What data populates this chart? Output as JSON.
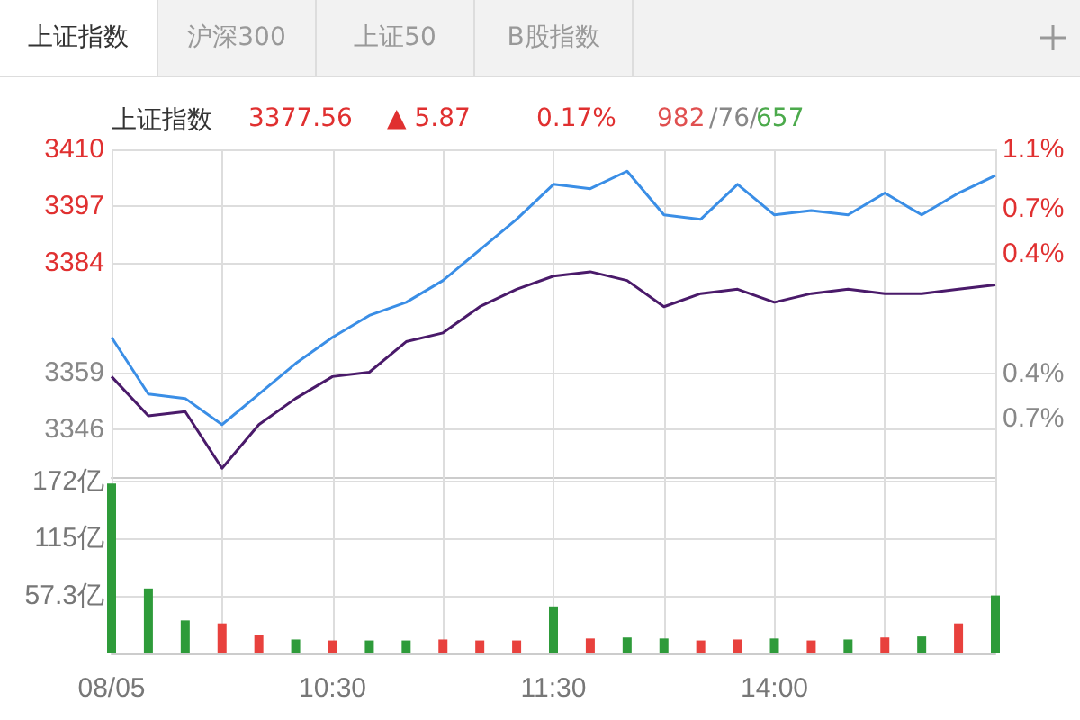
{
  "chart_data": [
    {
      "type": "other",
      "annotations": [
        "上证指数",
        "沪深300",
        "上证50",
        "B股指数"
      ]
    },
    {
      "type": "line",
      "title": "上证指数",
      "annotations": [
        "3377.56",
        "▲ 5.87",
        "0.17%",
        "982",
        "/76/",
        "657"
      ],
      "categories": [
        null,
        null,
        null,
        null,
        null,
        null,
        null,
        null,
        null,
        null,
        null,
        null,
        null,
        null,
        null,
        null,
        null,
        null,
        null,
        null,
        null,
        null,
        null,
        null,
        null
      ],
      "ylim": [
        3335,
        3410
      ],
      "yticks": [
        3410,
        3397,
        3384,
        3359,
        3346
      ],
      "y2lim": [
        -1.09,
        1.1
      ],
      "y2ticks": [
        {
          "value": 1.1,
          "label": "1.1%"
        },
        {
          "value": 0.7,
          "label": "0.7%"
        },
        {
          "value": 0.4,
          "label": "0.4%"
        },
        {
          "value": -0.4,
          "label": "0.4%"
        },
        {
          "value": -0.7,
          "label": "0.7%"
        }
      ],
      "tick_labels": "y",
      "grid": true,
      "marker": "none",
      "line_style": "solid",
      "series": [
        {
          "color": "#3a8ee6",
          "values": [
            3367,
            3354,
            3353,
            3347,
            3354,
            3361,
            3367,
            3372,
            3375,
            3380,
            3387,
            3394,
            3402,
            3401,
            3405,
            3395,
            3394,
            3402,
            3395,
            3396,
            3395,
            3400,
            3395,
            3400,
            3404
          ]
        },
        {
          "color": "#4a1a6a",
          "values": [
            3358,
            3349,
            3350,
            3337,
            3347,
            3353,
            3358,
            3359,
            3366,
            3368,
            3374,
            3378,
            3381,
            3382,
            3380,
            3374,
            3377,
            3378,
            3375,
            3377,
            3378,
            3377,
            3377,
            3378,
            3379
          ]
        }
      ]
    },
    {
      "type": "bar",
      "categories": [
        "08/05",
        null,
        null,
        null,
        null,
        null,
        "10:30",
        null,
        null,
        null,
        null,
        null,
        "11:30",
        null,
        null,
        null,
        null,
        null,
        "14:00",
        null,
        null,
        null,
        null,
        null,
        null
      ],
      "ylim": [
        0,
        180
      ],
      "yticks": [
        {
          "value": 172,
          "label": "172亿"
        },
        {
          "value": 115,
          "label": "115亿"
        },
        {
          "value": 57.3,
          "label": "57.3亿"
        }
      ],
      "grid": true,
      "values": [
        170,
        65,
        33,
        30,
        18,
        14,
        13,
        13,
        13,
        14,
        13,
        13,
        47,
        15,
        16,
        15,
        13,
        14,
        15,
        13,
        14,
        16,
        17,
        30,
        58
      ],
      "colors": [
        "#2e9b3a",
        "#2e9b3a",
        "#2e9b3a",
        "#e8413d",
        "#e8413d",
        "#2e9b3a",
        "#e8413d",
        "#2e9b3a",
        "#2e9b3a",
        "#e8413d",
        "#e8413d",
        "#e8413d",
        "#2e9b3a",
        "#e8413d",
        "#2e9b3a",
        "#2e9b3a",
        "#e8413d",
        "#e8413d",
        "#2e9b3a",
        "#e8413d",
        "#2e9b3a",
        "#e8413d",
        "#2e9b3a",
        "#e8413d",
        "#2e9b3a"
      ]
    }
  ]
}
